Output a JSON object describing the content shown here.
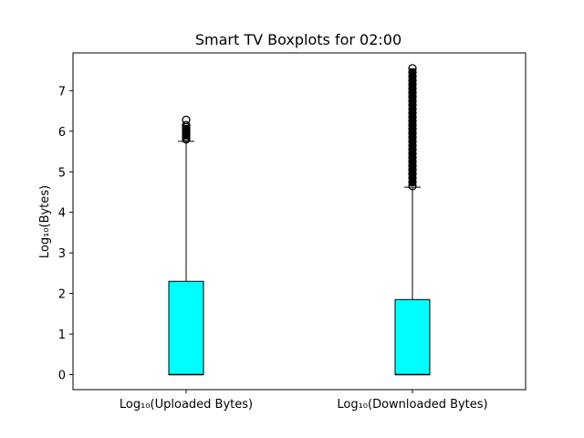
{
  "chart_data": {
    "type": "boxplot",
    "title": "Smart TV Boxplots for 02:00",
    "xlabel": "",
    "ylabel": "Log₁₀(Bytes)",
    "ylim": [
      -0.37,
      7.93
    ],
    "yticks": [
      0,
      1,
      2,
      3,
      4,
      5,
      6,
      7
    ],
    "grid": false,
    "box_color": "#00ffff",
    "categories": [
      "Log₁₀(Uploaded Bytes)",
      "Log₁₀(Downloaded Bytes)"
    ],
    "boxes": [
      {
        "label": "Log₁₀(Uploaded Bytes)",
        "whisker_low": 0,
        "q1": 0,
        "median": 0,
        "q3": 2.3,
        "whisker_high": 5.75,
        "outliers": [
          5.8,
          5.85,
          5.9,
          5.95,
          6.0,
          6.05,
          6.1,
          6.15,
          6.28
        ]
      },
      {
        "label": "Log₁₀(Downloaded Bytes)",
        "whisker_low": 0,
        "q1": 0,
        "median": 0,
        "q3": 1.85,
        "whisker_high": 4.62,
        "outliers": [
          4.65,
          4.75,
          4.85,
          4.95,
          5.05,
          5.15,
          5.25,
          5.35,
          5.45,
          5.55,
          5.65,
          5.75,
          5.85,
          5.95,
          6.05,
          6.15,
          6.25,
          6.35,
          6.45,
          6.55,
          6.65,
          6.75,
          6.85,
          6.95,
          7.05,
          7.15,
          7.25,
          7.35,
          7.45,
          7.55
        ]
      }
    ]
  }
}
